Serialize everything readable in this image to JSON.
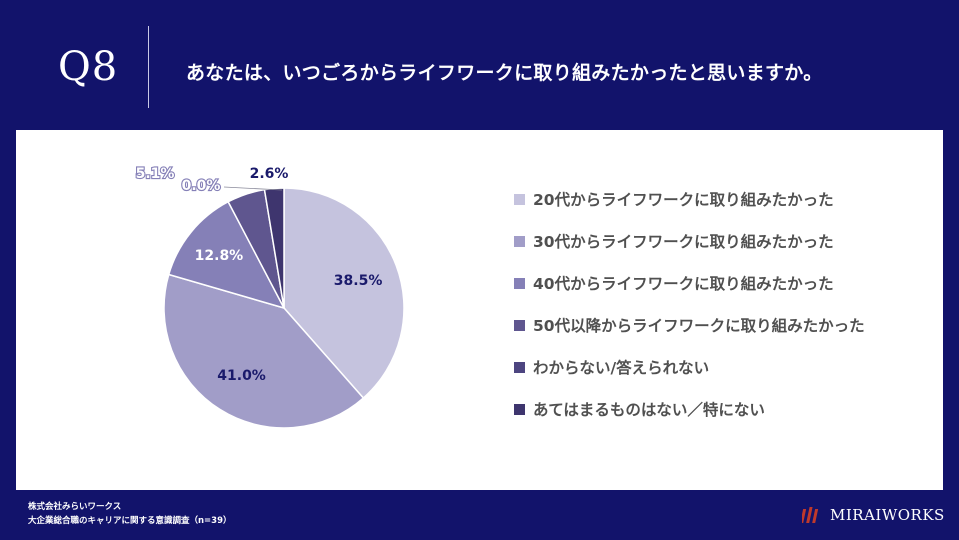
{
  "header": {
    "qnum": "Q8",
    "question": "あなたは、いつごろからライフワークに取り組みたかったと思いますか。"
  },
  "chart_data": {
    "type": "pie",
    "categories": [
      "20代からライフワークに取り組みたかった",
      "30代からライフワークに取り組みたかった",
      "40代からライフワークに取り組みたかった",
      "50代以降からライフワークに取り組みたかった",
      "わからない/答えられない",
      "あてはまるものはない／特にない"
    ],
    "values": [
      38.5,
      41.0,
      12.8,
      5.1,
      0.0,
      2.6
    ],
    "value_labels": [
      "38.5%",
      "41.0%",
      "12.8%",
      "5.1%",
      "0.0%",
      "2.6%"
    ],
    "colors": [
      "#c5c3de",
      "#a19dc8",
      "#8580b7",
      "#5f568f",
      "#4d4580",
      "#3e356e"
    ],
    "label_colors": [
      "#1a1a6b",
      "#1a1a6b",
      "#ffffff",
      "#ffffff",
      "#ffffff",
      "#1a1a6b"
    ],
    "legend": "right",
    "start_angle_deg": 0,
    "direction": "clockwise"
  },
  "footer": {
    "company": "株式会社みらいワークス",
    "survey": "大企業総合職のキャリアに関する意識調査（n=39）",
    "brand": "MIRAIWORKS",
    "logo_color": "#c0392b"
  }
}
